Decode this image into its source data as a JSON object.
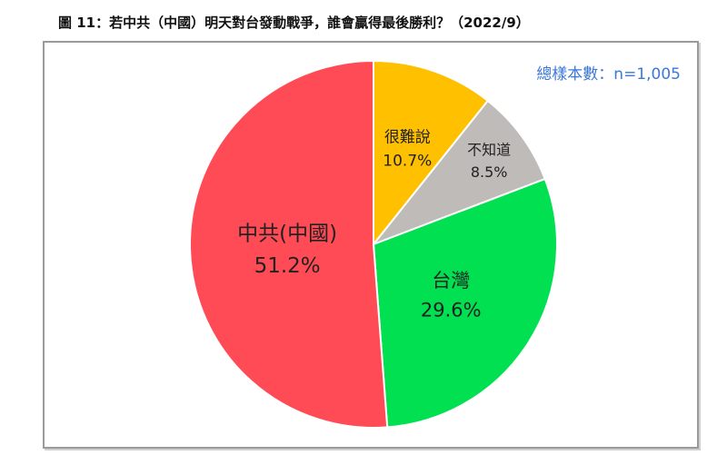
{
  "figure_title": "圖 11：若中共（中國）明天對台發動戰爭，誰會贏得最後勝利？（2022/9）",
  "sample_note": "總樣本數：n=1,005",
  "chart_data": {
    "type": "pie",
    "start_angle_deg": 0,
    "direction": "clockwise",
    "slices": [
      {
        "label": "很難說",
        "value": 10.7,
        "value_label": "10.7%",
        "color": "#ffc000"
      },
      {
        "label": "不知道",
        "value": 8.5,
        "value_label": "8.5%",
        "color": "#bfbbb8"
      },
      {
        "label": "台灣",
        "value": 29.6,
        "value_label": "29.6%",
        "color": "#00e050"
      },
      {
        "label": "中共(中國)",
        "value": 51.2,
        "value_label": "51.2%",
        "color": "#ff4b55"
      }
    ]
  }
}
